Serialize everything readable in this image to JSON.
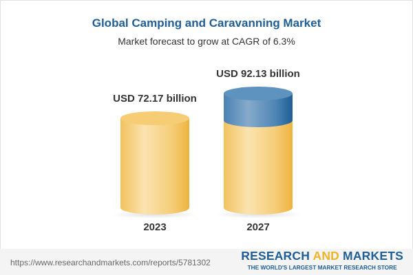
{
  "title": "Global Camping and Caravanning Market",
  "subtitle": "Market forecast to grow at CAGR of 6.3%",
  "chart_data": {
    "type": "bar",
    "style": "3d-cylinder",
    "categories": [
      "2023",
      "2027"
    ],
    "values": [
      72.17,
      92.13
    ],
    "data_labels": [
      "USD 72.17 billion",
      "USD 92.13 billion"
    ],
    "unit": "USD billion",
    "colors": {
      "base": "#f3c260",
      "growth": "#3f7aab"
    }
  },
  "footer": {
    "url": "https://www.researchandmarkets.com/reports/5781302",
    "logo_part1": "RESEARCH ",
    "logo_part2": "AND",
    "logo_part3": " MARKETS",
    "tagline": "THE WORLD'S LARGEST MARKET RESEARCH STORE"
  }
}
